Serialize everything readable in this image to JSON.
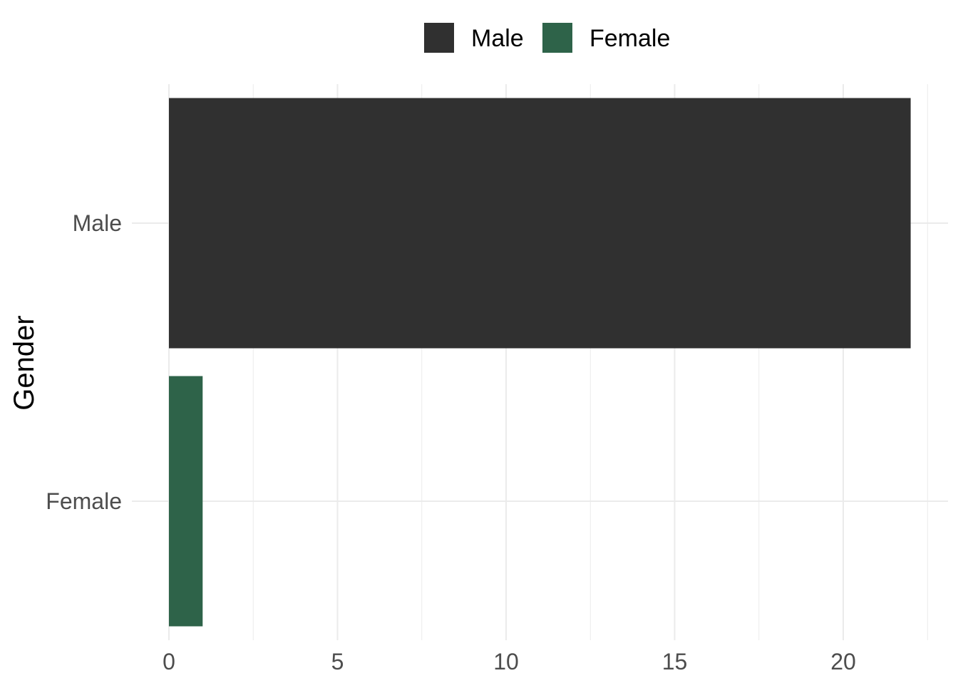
{
  "chart_data": {
    "type": "bar",
    "orientation": "horizontal",
    "categories": [
      "Male",
      "Female"
    ],
    "values": [
      22,
      1
    ],
    "colors": [
      "#303030",
      "#2e6349"
    ],
    "xlabel": "",
    "ylabel": "Gender",
    "xlim": [
      -0.5,
      23.5
    ],
    "x_ticks": [
      0,
      5,
      10,
      15,
      20
    ],
    "grid": true,
    "legend": {
      "position": "top",
      "entries": [
        {
          "label": "Male",
          "color": "#303030"
        },
        {
          "label": "Female",
          "color": "#2e6349"
        }
      ]
    }
  }
}
